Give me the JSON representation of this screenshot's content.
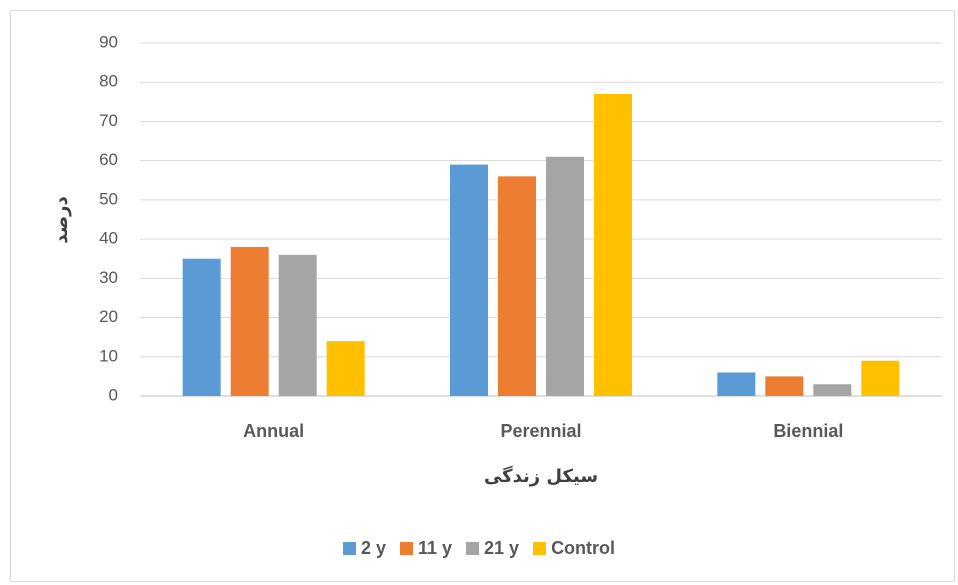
{
  "chart_data": {
    "type": "bar",
    "categories": [
      "Annual",
      "Perennial",
      "Biennial"
    ],
    "series": [
      {
        "name": "2 y",
        "color": "#5b9bd5",
        "values": [
          35,
          59,
          6
        ]
      },
      {
        "name": "11 y",
        "color": "#ed7d31",
        "values": [
          38,
          56,
          5
        ]
      },
      {
        "name": "21 y",
        "color": "#a5a5a5",
        "values": [
          36,
          61,
          3
        ]
      },
      {
        "name": "Control",
        "color": "#ffc000",
        "values": [
          14,
          77,
          9
        ]
      }
    ],
    "ylabel": "درصد",
    "xlabel": "سیکل زندگی",
    "ylim": [
      0,
      90
    ],
    "yticks": [
      0,
      10,
      20,
      30,
      40,
      50,
      60,
      70,
      80,
      90
    ],
    "grid": true,
    "legend": "bottom"
  }
}
